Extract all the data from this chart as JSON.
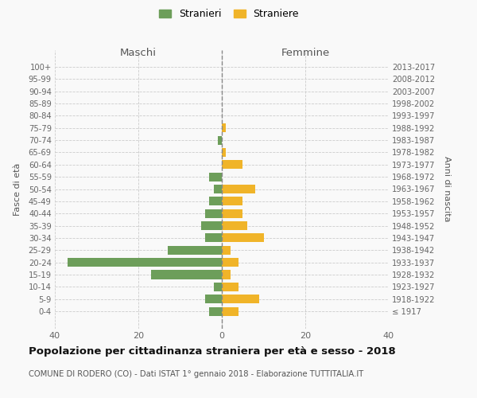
{
  "age_groups": [
    "100+",
    "95-99",
    "90-94",
    "85-89",
    "80-84",
    "75-79",
    "70-74",
    "65-69",
    "60-64",
    "55-59",
    "50-54",
    "45-49",
    "40-44",
    "35-39",
    "30-34",
    "25-29",
    "20-24",
    "15-19",
    "10-14",
    "5-9",
    "0-4"
  ],
  "birth_years": [
    "≤ 1917",
    "1918-1922",
    "1923-1927",
    "1928-1932",
    "1933-1937",
    "1938-1942",
    "1943-1947",
    "1948-1952",
    "1953-1957",
    "1958-1962",
    "1963-1967",
    "1968-1972",
    "1973-1977",
    "1978-1982",
    "1983-1987",
    "1988-1992",
    "1993-1997",
    "1998-2002",
    "2003-2007",
    "2008-2012",
    "2013-2017"
  ],
  "males": [
    0,
    0,
    0,
    0,
    0,
    0,
    1,
    0,
    0,
    3,
    2,
    3,
    4,
    5,
    4,
    13,
    37,
    17,
    2,
    4,
    3
  ],
  "females": [
    0,
    0,
    0,
    0,
    0,
    1,
    0,
    1,
    5,
    0,
    8,
    5,
    5,
    6,
    10,
    2,
    4,
    2,
    4,
    9,
    4
  ],
  "color_male": "#6d9e5a",
  "color_female": "#f0b429",
  "title_main": "Popolazione per cittadinanza straniera per età e sesso - 2018",
  "title_sub": "COMUNE DI RODERO (CO) - Dati ISTAT 1° gennaio 2018 - Elaborazione TUTTITALIA.IT",
  "legend_male": "Stranieri",
  "legend_female": "Straniere",
  "xlabel_left": "Maschi",
  "xlabel_right": "Femmine",
  "ylabel_left": "Fasce di età",
  "ylabel_right": "Anni di nascita",
  "xlim": 40,
  "background_color": "#f9f9f9",
  "grid_color": "#cccccc"
}
